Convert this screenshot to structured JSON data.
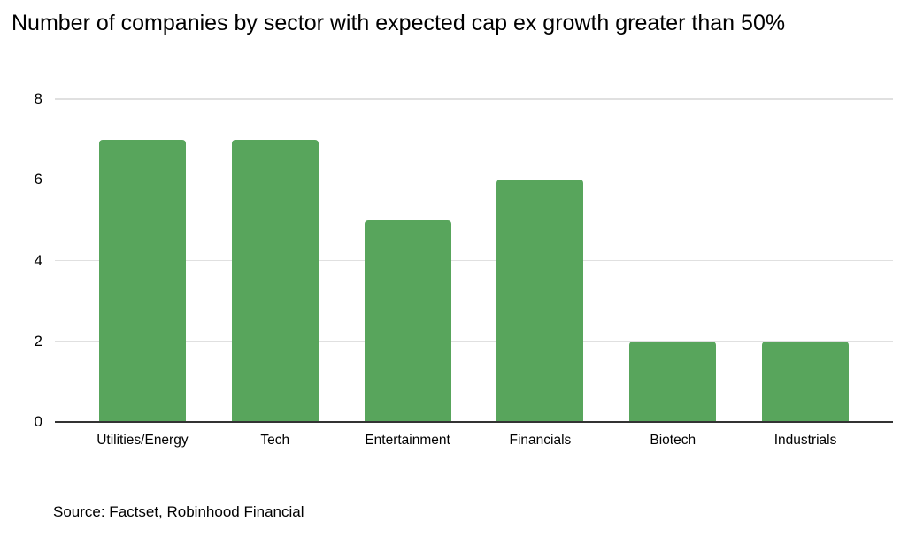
{
  "chart_data": {
    "type": "bar",
    "title": "Number of companies by sector with expected cap ex growth greater than 50%",
    "categories": [
      "Utilities/Energy",
      "Tech",
      "Entertainment",
      "Financials",
      "Biotech",
      "Industrials"
    ],
    "values": [
      7,
      7,
      5,
      6,
      2,
      2
    ],
    "xlabel": "",
    "ylabel": "",
    "ylim": [
      0,
      8
    ],
    "yticks": [
      0,
      2,
      4,
      6,
      8
    ],
    "grid": true,
    "legend_position": "none",
    "bar_color": "#58a55c",
    "gridline_color": "#e0e0e0",
    "axis_line_color": "#333333",
    "text_color": "#000000",
    "background_color": "#ffffff",
    "source": "Source: Factset, Robinhood Financial"
  }
}
